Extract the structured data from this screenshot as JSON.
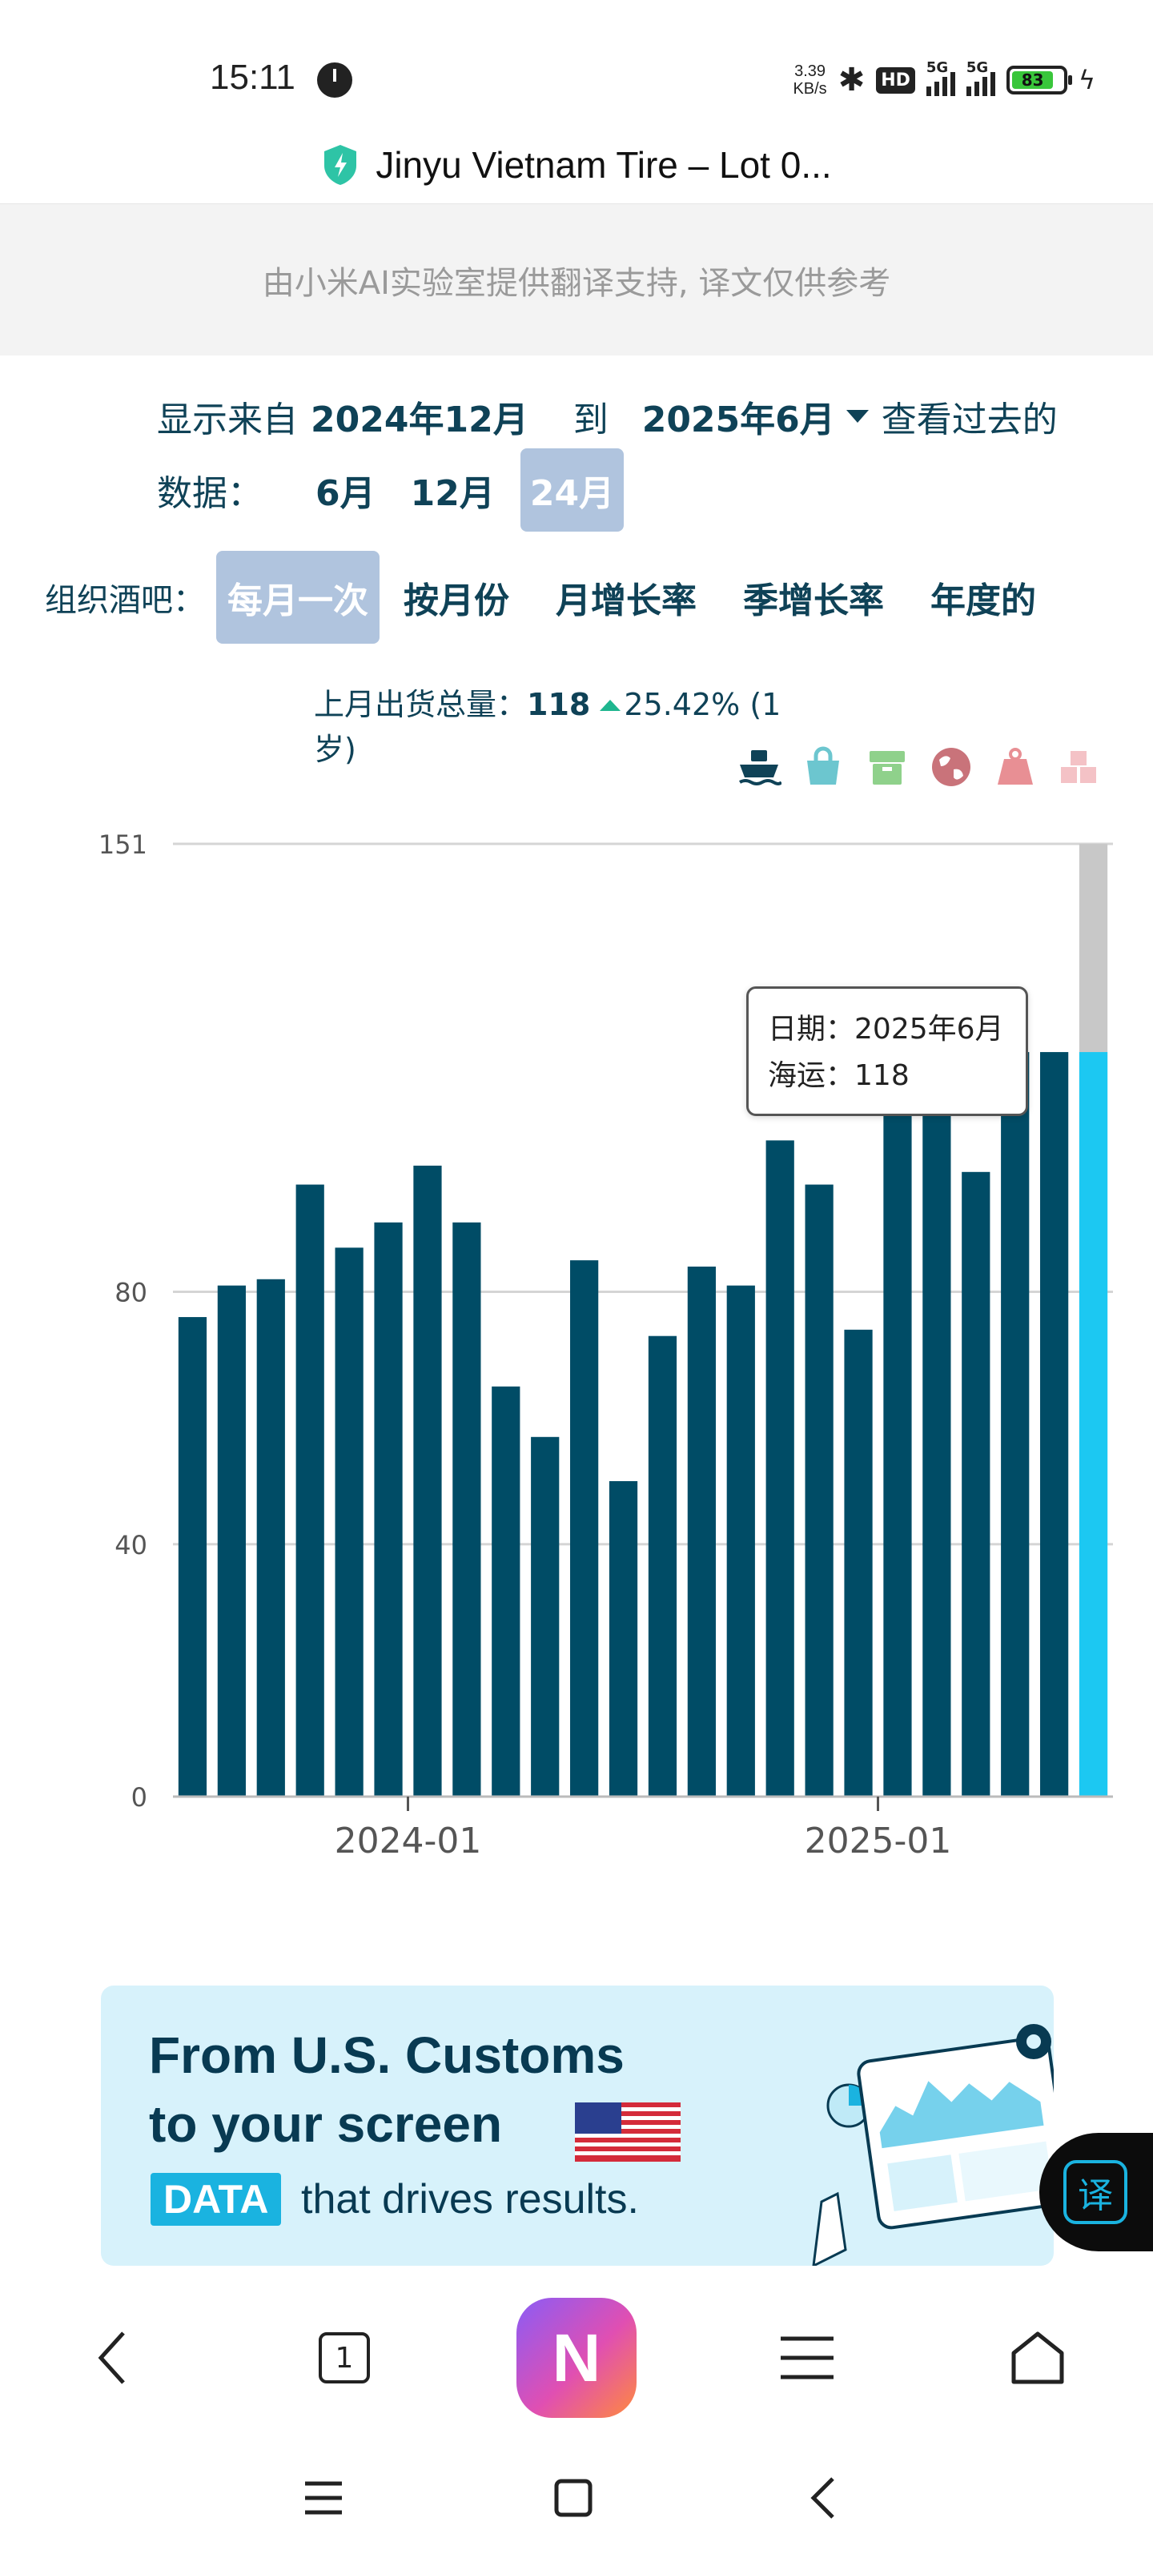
{
  "status_bar": {
    "time": "15:11",
    "net_speed_value": "3.39",
    "net_speed_unit": "KB/s",
    "hd_label": "HD",
    "sig1_label": "5G",
    "sig2_label": "5G",
    "battery": "83"
  },
  "url_bar": {
    "title": "Jinyu Vietnam Tire – Lot 0..."
  },
  "translate_banner": {
    "text": "由小米AI实验室提供翻译支持, 译文仅供参考"
  },
  "controls": {
    "show_from_label": "显示来自",
    "from_date": "2024年12月",
    "to_label": "到",
    "to_date": "2025年6月",
    "view_past_label": "查看过去的",
    "data_label": "数据：",
    "periods": [
      "6月",
      "12月",
      "24月"
    ],
    "active_period": "24月",
    "org_label": "组织酒吧：",
    "org_buttons": [
      "每月一次",
      "按月份",
      "月增长率",
      "季增长率",
      "年度的"
    ],
    "active_org": "每月一次"
  },
  "summary": {
    "label": "上月出货总量：",
    "value": "118",
    "change": "25.42%",
    "period_note": "(1 岁)"
  },
  "icons": [
    "ship-icon",
    "bag-icon",
    "box-icon",
    "globe-icon",
    "weight-icon",
    "cubes-icon"
  ],
  "colors": {
    "primary": "#0f4257",
    "bar": "#004c66",
    "highlight_bar": "#1cc8f2",
    "accent_chip": "#b0c4de",
    "up": "#1fb68f"
  },
  "chart_data": {
    "type": "bar",
    "x": [
      "2023-07",
      "2023-08",
      "2023-09",
      "2023-10",
      "2023-11",
      "2023-12",
      "2024-01",
      "2024-02",
      "2024-03",
      "2024-04",
      "2024-05",
      "2024-06",
      "2024-07",
      "2024-08",
      "2024-09",
      "2024-10",
      "2024-11",
      "2024-12",
      "2025-01",
      "2025-02",
      "2025-03",
      "2025-04",
      "2025-05",
      "2025-06"
    ],
    "values": [
      76,
      81,
      82,
      97,
      87,
      91,
      100,
      91,
      65,
      57,
      85,
      50,
      73,
      84,
      81,
      104,
      97,
      74,
      121,
      121,
      99,
      118,
      118,
      118
    ],
    "highlight_index": 23,
    "highlight_max": 151,
    "ylim": [
      0,
      151
    ],
    "yticks": [
      0,
      40,
      80,
      151
    ],
    "xtick_labels": [
      "2024-01",
      "2025-01"
    ],
    "grid": true,
    "tooltip": {
      "date_label": "日期：",
      "date": "2025年6月",
      "series_label": "海运：",
      "value": "118"
    }
  },
  "ad": {
    "headline_1": "From U.S. Customs",
    "headline_2": "to your screen",
    "data_badge": "DATA",
    "tagline": "that drives results."
  },
  "floating": {
    "translate_label": "译"
  },
  "browser_nav": {
    "tab_count": "1",
    "logo_letter": "N"
  }
}
